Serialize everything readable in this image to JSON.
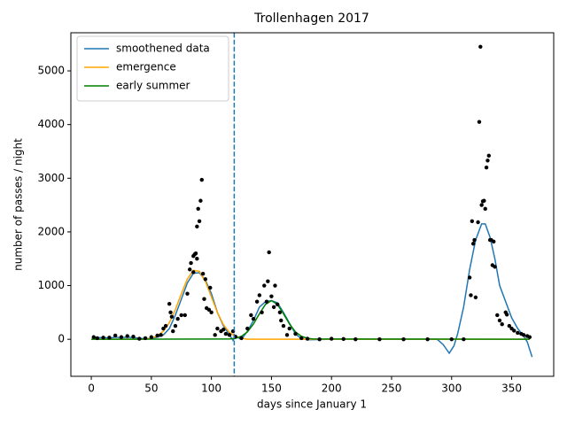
{
  "chart_data": {
    "type": "line",
    "title": "Trollenhagen 2017",
    "xlabel": "days since January 1",
    "ylabel": "number of passes / night",
    "xlim": [
      -17,
      385
    ],
    "ylim": [
      -690,
      5710
    ],
    "xticks": [
      0,
      50,
      100,
      150,
      200,
      250,
      300,
      350
    ],
    "yticks": [
      0,
      1000,
      2000,
      3000,
      4000,
      5000
    ],
    "legend": "upper left",
    "vline": {
      "x": 119,
      "color": "#1f77b4",
      "style": "dashed"
    },
    "series": [
      {
        "name": "smoothened data",
        "color": "#1f77b4",
        "x": [
          1,
          5,
          10,
          15,
          20,
          25,
          30,
          35,
          40,
          45,
          50,
          55,
          60,
          65,
          70,
          75,
          80,
          85,
          90,
          95,
          100,
          105,
          110,
          115,
          118,
          120,
          123,
          125,
          130,
          135,
          140,
          145,
          150,
          155,
          160,
          165,
          170,
          175,
          180,
          200,
          250,
          288,
          293,
          298,
          302,
          305,
          310,
          315,
          320,
          325,
          328,
          332,
          336,
          340,
          345,
          350,
          355,
          360,
          363,
          367
        ],
        "values": [
          30,
          25,
          35,
          20,
          40,
          30,
          40,
          30,
          20,
          10,
          15,
          40,
          80,
          200,
          450,
          750,
          1050,
          1230,
          1240,
          1100,
          850,
          500,
          250,
          80,
          -20,
          60,
          20,
          0,
          150,
          350,
          600,
          700,
          720,
          680,
          500,
          300,
          100,
          10,
          -10,
          0,
          0,
          0,
          -100,
          -260,
          -120,
          100,
          600,
          1300,
          1850,
          2150,
          2150,
          1900,
          1500,
          1000,
          700,
          400,
          200,
          60,
          -50,
          -330
        ]
      },
      {
        "name": "emergence",
        "color": "#ffa500",
        "x": [
          0,
          45,
          50,
          55,
          60,
          65,
          70,
          75,
          80,
          85,
          90,
          95,
          100,
          105,
          110,
          115,
          120,
          125,
          130,
          365
        ],
        "values": [
          0,
          0,
          23,
          63,
          150,
          310,
          553,
          849,
          1124,
          1285,
          1266,
          1076,
          789,
          498,
          272,
          128,
          52,
          18,
          0,
          0
        ]
      },
      {
        "name": "early summer",
        "color": "#008000",
        "x": [
          0,
          115,
          120,
          125,
          130,
          135,
          140,
          145,
          150,
          155,
          160,
          165,
          170,
          175,
          180,
          185,
          365
        ],
        "values": [
          0,
          5,
          17,
          55,
          138,
          284,
          476,
          649,
          720,
          649,
          476,
          284,
          138,
          55,
          17,
          5,
          0
        ]
      }
    ],
    "scatter": {
      "color": "#000000",
      "x": [
        2,
        5,
        10,
        15,
        20,
        25,
        30,
        35,
        40,
        45,
        50,
        55,
        58,
        60,
        62,
        65,
        66,
        67,
        68,
        70,
        72,
        75,
        78,
        80,
        82,
        83,
        85,
        85,
        86,
        87,
        88,
        88,
        89,
        90,
        91,
        92,
        93,
        94,
        95,
        96,
        98,
        99,
        100,
        103,
        105,
        108,
        110,
        112,
        115,
        118,
        120,
        125,
        130,
        133,
        135,
        138,
        140,
        142,
        144,
        146,
        147,
        148,
        150,
        152,
        153,
        155,
        157,
        158,
        160,
        163,
        165,
        170,
        175,
        180,
        190,
        200,
        210,
        220,
        240,
        260,
        280,
        300,
        310,
        315,
        316,
        317,
        318,
        319,
        320,
        322,
        323,
        324,
        325,
        326,
        327,
        328,
        329,
        330,
        331,
        332,
        333,
        334,
        335,
        336,
        338,
        340,
        342,
        345,
        346,
        348,
        350,
        352,
        355,
        358,
        360,
        363,
        365
      ],
      "values": [
        40,
        20,
        30,
        30,
        70,
        40,
        60,
        50,
        10,
        20,
        40,
        70,
        80,
        200,
        250,
        660,
        500,
        420,
        150,
        250,
        380,
        450,
        450,
        850,
        1300,
        1420,
        1550,
        1250,
        1580,
        1600,
        2100,
        1500,
        2430,
        2200,
        2580,
        2970,
        1220,
        750,
        1120,
        580,
        550,
        960,
        500,
        80,
        200,
        150,
        180,
        100,
        80,
        150,
        50,
        20,
        200,
        450,
        380,
        700,
        820,
        500,
        1000,
        700,
        1080,
        1620,
        800,
        600,
        1000,
        650,
        500,
        350,
        250,
        80,
        200,
        100,
        20,
        10,
        0,
        10,
        5,
        0,
        0,
        0,
        0,
        0,
        0,
        1150,
        820,
        2200,
        1780,
        1850,
        780,
        2180,
        4050,
        5450,
        2500,
        2570,
        2580,
        2430,
        3200,
        3330,
        3420,
        1850,
        1850,
        1380,
        1820,
        1350,
        450,
        350,
        280,
        500,
        460,
        250,
        200,
        160,
        120,
        100,
        80,
        60,
        40
      ]
    }
  }
}
